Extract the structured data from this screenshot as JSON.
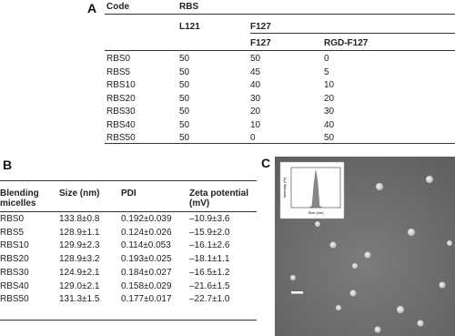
{
  "panel_a": {
    "label": "A",
    "header": {
      "code": "Code",
      "rbs": "RBS",
      "l121": "L121",
      "f127_group": "F127",
      "f127": "F127",
      "rgd_f127": "RGD-F127"
    },
    "rows": [
      [
        "RBS0",
        50,
        50,
        0
      ],
      [
        "RBS5",
        50,
        45,
        5
      ],
      [
        "RBS10",
        50,
        40,
        10
      ],
      [
        "RBS20",
        50,
        30,
        20
      ],
      [
        "RBS30",
        50,
        20,
        30
      ],
      [
        "RBS40",
        50,
        10,
        40
      ],
      [
        "RBS50",
        50,
        0,
        50
      ]
    ]
  },
  "panel_b": {
    "label": "B",
    "header": [
      "Blending micelles",
      "Size (nm)",
      "PDI",
      "Zeta potential (mV)"
    ],
    "rows": [
      [
        "RBS0",
        "133.8±0.8",
        "0.192±0.039",
        "–10.9±3.6"
      ],
      [
        "RBS5",
        "128.9±1.1",
        "0.124±0.026",
        "–15.9±2.0"
      ],
      [
        "RBS10",
        "129.9±2.3",
        "0.114±0.053",
        "–16.1±2.6"
      ],
      [
        "RBS20",
        "128.9±3.2",
        "0.193±0.025",
        "–18.1±1.1"
      ],
      [
        "RBS30",
        "124.9±2.1",
        "0.184±0.027",
        "–16.5±1.2"
      ],
      [
        "RBS40",
        "129.0±2.1",
        "0.158±0.029",
        "–21.6±1.5"
      ],
      [
        "RBS50",
        "131.3±1.5",
        "0.177±0.017",
        "–22.7±1.0"
      ]
    ]
  },
  "panel_c": {
    "label": "C",
    "inset": {
      "y_label": "Intensity (%)",
      "x_label": "Size (nm)"
    }
  }
}
